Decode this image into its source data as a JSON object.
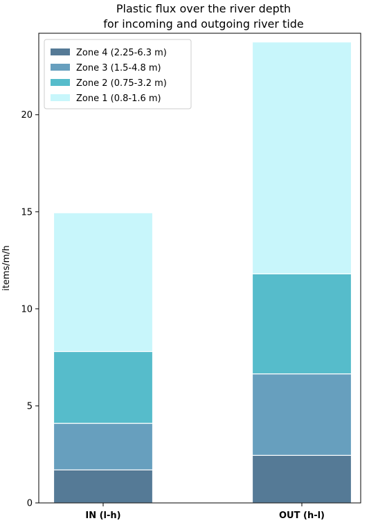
{
  "chart_data": {
    "type": "bar",
    "stacked": true,
    "title": "Plastic flux over the river depth\nfor incoming and outgoing river tide",
    "ylabel": "items/m/h",
    "xlabel": "",
    "categories": [
      "IN (l-h)",
      "OUT (h-l)"
    ],
    "ylim": [
      0,
      24.2
    ],
    "yticks": [
      0,
      5,
      10,
      15,
      20
    ],
    "grid": false,
    "legend_position": "top-left",
    "series": [
      {
        "name": "Zone 4 (2.25-6.3 m)",
        "color": "#557a96",
        "values": [
          1.7,
          2.45
        ]
      },
      {
        "name": "Zone 3 (1.5-4.8 m)",
        "color": "#679fbe",
        "values": [
          2.4,
          4.2
        ]
      },
      {
        "name": "Zone 2 (0.75-3.2 m)",
        "color": "#56bccb",
        "values": [
          3.7,
          5.15
        ]
      },
      {
        "name": "Zone 1 (0.8-1.6 m)",
        "color": "#c8f6fb",
        "values": [
          7.15,
          11.95
        ]
      }
    ]
  }
}
